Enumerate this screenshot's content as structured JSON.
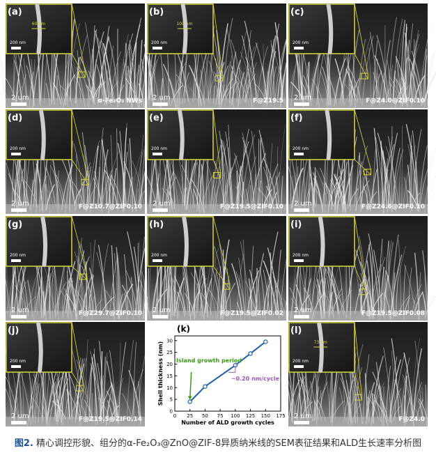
{
  "panels": [
    {
      "label": "(a)",
      "scale_bar": "2 um",
      "inset_scale": "200 nm",
      "measure": "60 nm",
      "sample": "α-Fe₂O₃ NWs"
    },
    {
      "label": "(b)",
      "scale_bar": "2 um",
      "inset_scale": "200 nm",
      "measure": "100 nm",
      "sample": "F@Z19.5"
    },
    {
      "label": "(c)",
      "scale_bar": "2 um",
      "inset_scale": "200 nm",
      "sample": "F@Z4.0@ZIF0.10"
    },
    {
      "label": "(d)",
      "scale_bar": "2 um",
      "inset_scale": "200 nm",
      "sample": "F@Z10.7@ZIF0.10"
    },
    {
      "label": "(e)",
      "scale_bar": "2 um",
      "inset_scale": "200 nm",
      "sample": "F@Z19.5@ZIF0.10"
    },
    {
      "label": "(f)",
      "scale_bar": "2 um",
      "inset_scale": "200 nm",
      "sample": "F@Z24.6@ZIF0.10"
    },
    {
      "label": "(g)",
      "scale_bar": "2 um",
      "inset_scale": "200 nm",
      "sample": "F@Z29.7@ZIF0.10"
    },
    {
      "label": "(h)",
      "scale_bar": "2 um",
      "inset_scale": "200 nm",
      "sample": "F@Z19.5@ZIF0.02"
    },
    {
      "label": "(i)",
      "scale_bar": "2 um",
      "inset_scale": "200 nm",
      "sample": "F@Z19.5@ZIF0.08"
    },
    {
      "label": "(j)",
      "scale_bar": "2 um",
      "inset_scale": "200 nm",
      "sample": "F@Z19.5@ZIF0.14"
    },
    {
      "label": "(l)",
      "scale_bar": "2 um",
      "inset_scale": "200 nm",
      "measure": "73 nm",
      "sample": "F@Z4.0"
    }
  ],
  "chart_data": {
    "type": "line",
    "panel_label": "(k)",
    "x_label": "Number of ALD growth cycles",
    "y_label": "Shell thickness (nm)",
    "x": [
      25,
      50,
      100,
      125,
      150
    ],
    "values": [
      4,
      10.5,
      19.5,
      24.5,
      29.5
    ],
    "color": "#1f5fa8",
    "xlim": [
      0,
      175
    ],
    "xticks": [
      0,
      25,
      50,
      75,
      100,
      125,
      150,
      175
    ],
    "ylim": [
      0,
      32
    ],
    "yticks": [
      0,
      5,
      10,
      15,
      20,
      25,
      30
    ],
    "annotations": [
      {
        "text": "Island growth period",
        "color": "#3a9a1a"
      },
      {
        "text": "~0.20 nm/cycle",
        "color": "#9b59b6"
      }
    ]
  },
  "caption": {
    "label": "图2.",
    "text": "精心调控形貌、组分的α-Fe₂O₃@ZnO@ZIF-8异质纳米线的SEM表征结果和ALD生长速率分析图"
  }
}
